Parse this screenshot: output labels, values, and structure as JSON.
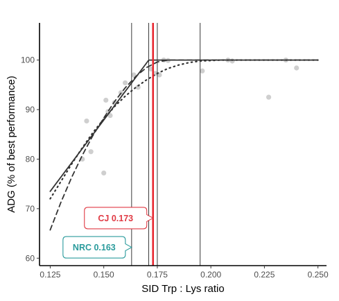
{
  "chart_data": {
    "type": "scatter",
    "title": "",
    "xlabel": "SID Trp : Lys ratio",
    "ylabel": "ADG (% of best performance)",
    "xlim": [
      0.12,
      0.254
    ],
    "ylim": [
      58.5,
      107.5
    ],
    "xticks": [
      0.125,
      0.15,
      0.175,
      0.2,
      0.225,
      0.25
    ],
    "xtick_labels": [
      "0.125",
      "0.150",
      "0.175",
      "0.200",
      "0.225",
      "0.250"
    ],
    "yticks": [
      60,
      70,
      80,
      90,
      100
    ],
    "ytick_labels": [
      "60",
      "70",
      "80",
      "90",
      "100"
    ],
    "grid": false,
    "points": [
      {
        "x": 0.14,
        "y": 80.0
      },
      {
        "x": 0.142,
        "y": 87.7
      },
      {
        "x": 0.144,
        "y": 81.5
      },
      {
        "x": 0.15,
        "y": 77.2
      },
      {
        "x": 0.151,
        "y": 91.9
      },
      {
        "x": 0.152,
        "y": 89.6
      },
      {
        "x": 0.153,
        "y": 88.8
      },
      {
        "x": 0.155,
        "y": 91.4
      },
      {
        "x": 0.158,
        "y": 93.4
      },
      {
        "x": 0.16,
        "y": 95.4
      },
      {
        "x": 0.164,
        "y": 97.0
      },
      {
        "x": 0.166,
        "y": 94.5
      },
      {
        "x": 0.172,
        "y": 98.2
      },
      {
        "x": 0.174,
        "y": 97.3
      },
      {
        "x": 0.176,
        "y": 97.0
      },
      {
        "x": 0.178,
        "y": 100.0
      },
      {
        "x": 0.18,
        "y": 99.9
      },
      {
        "x": 0.196,
        "y": 97.8
      },
      {
        "x": 0.208,
        "y": 100.0
      },
      {
        "x": 0.21,
        "y": 99.8
      },
      {
        "x": 0.227,
        "y": 92.5
      },
      {
        "x": 0.235,
        "y": 100.0
      },
      {
        "x": 0.24,
        "y": 98.4
      }
    ],
    "series": [
      {
        "style": "solid",
        "x": [
          0.125,
          0.171,
          0.25
        ],
        "y": [
          73.5,
          100.0,
          100.0
        ]
      },
      {
        "style": "dashed",
        "x": [
          0.125,
          0.13,
          0.135,
          0.14,
          0.145,
          0.15,
          0.155,
          0.16,
          0.165,
          0.17,
          0.175,
          0.18,
          0.2,
          0.25
        ],
        "y": [
          65.7,
          71.3,
          76.3,
          80.8,
          84.8,
          88.3,
          91.6,
          94.4,
          96.7,
          98.5,
          99.6,
          100.0,
          100.0,
          100.0
        ]
      },
      {
        "style": "dotted",
        "x": [
          0.125,
          0.13,
          0.135,
          0.14,
          0.145,
          0.15,
          0.155,
          0.16,
          0.165,
          0.17,
          0.175,
          0.18,
          0.185,
          0.19,
          0.195,
          0.2,
          0.205,
          0.21,
          0.25
        ],
        "y": [
          72.0,
          75.5,
          79.0,
          82.3,
          85.4,
          88.1,
          90.6,
          92.7,
          94.5,
          96.0,
          97.3,
          98.3,
          99.0,
          99.5,
          99.8,
          99.9,
          100.0,
          100.0,
          100.0
        ]
      }
    ],
    "reference_lines": [
      {
        "x": 0.163,
        "style": "thin"
      },
      {
        "x": 0.171,
        "style": "thin"
      },
      {
        "x": 0.175,
        "style": "thin"
      },
      {
        "x": 0.195,
        "style": "thin"
      },
      {
        "x": 0.173,
        "style": "highlight",
        "color": "#e8262f"
      }
    ],
    "annotations": [
      {
        "label": "CJ 0.173",
        "x": 0.173,
        "y": 68.1,
        "color": "#e03a44"
      },
      {
        "label": "NRC 0.163",
        "x": 0.163,
        "y": 62.2,
        "color": "#2a9b9c"
      }
    ],
    "colors": {
      "points": "#cfcfcf",
      "lines": "#333333",
      "highlight": "#e8262f"
    }
  }
}
